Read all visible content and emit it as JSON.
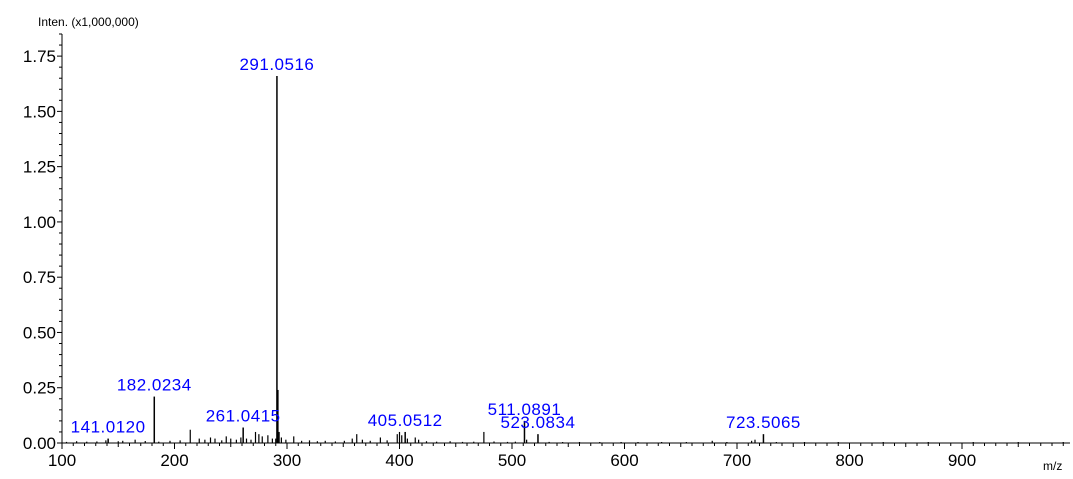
{
  "chart_data": {
    "type": "bar",
    "ylabel": "Inten. (x1,000,000)",
    "xlabel": "m/z",
    "xlim": [
      100,
      1000
    ],
    "ylim": [
      0,
      1.85
    ],
    "x_ticks": [
      100,
      200,
      300,
      400,
      500,
      600,
      700,
      800,
      900
    ],
    "x_tick_labels": [
      "100",
      "200",
      "300",
      "400",
      "500",
      "600",
      "700",
      "800",
      "900"
    ],
    "y_ticks": [
      0,
      0.25,
      0.5,
      0.75,
      1.0,
      1.25,
      1.5,
      1.75
    ],
    "y_tick_labels": [
      "0.00",
      "0.25",
      "0.50",
      "0.75",
      "1.00",
      "1.25",
      "1.50",
      "1.75"
    ],
    "label_color": "#0000ff",
    "bar_color": "#000000",
    "labeled_peaks": [
      {
        "mz": 141.012,
        "intensity": 0.02,
        "label": "141.0120"
      },
      {
        "mz": 182.0234,
        "intensity": 0.21,
        "label": "182.0234"
      },
      {
        "mz": 261.0415,
        "intensity": 0.07,
        "label": "261.0415"
      },
      {
        "mz": 291.0516,
        "intensity": 1.66,
        "label": "291.0516"
      },
      {
        "mz": 405.0512,
        "intensity": 0.05,
        "label": "405.0512"
      },
      {
        "mz": 511.0891,
        "intensity": 0.1,
        "label": "511.0891"
      },
      {
        "mz": 523.0834,
        "intensity": 0.04,
        "label": "523.0834"
      },
      {
        "mz": 723.5065,
        "intensity": 0.04,
        "label": "723.5065"
      }
    ],
    "minor_peaks": [
      {
        "mz": 104,
        "intensity": 0.005
      },
      {
        "mz": 113,
        "intensity": 0.008
      },
      {
        "mz": 122,
        "intensity": 0.006
      },
      {
        "mz": 131,
        "intensity": 0.007
      },
      {
        "mz": 139,
        "intensity": 0.012
      },
      {
        "mz": 150,
        "intensity": 0.008
      },
      {
        "mz": 154,
        "intensity": 0.01
      },
      {
        "mz": 165,
        "intensity": 0.015
      },
      {
        "mz": 174,
        "intensity": 0.009
      },
      {
        "mz": 186,
        "intensity": 0.006
      },
      {
        "mz": 196,
        "intensity": 0.01
      },
      {
        "mz": 205,
        "intensity": 0.012
      },
      {
        "mz": 214,
        "intensity": 0.06
      },
      {
        "mz": 222,
        "intensity": 0.02
      },
      {
        "mz": 227,
        "intensity": 0.015
      },
      {
        "mz": 232,
        "intensity": 0.025
      },
      {
        "mz": 236,
        "intensity": 0.02
      },
      {
        "mz": 242,
        "intensity": 0.012
      },
      {
        "mz": 246,
        "intensity": 0.03
      },
      {
        "mz": 250,
        "intensity": 0.02
      },
      {
        "mz": 255,
        "intensity": 0.015
      },
      {
        "mz": 259,
        "intensity": 0.025
      },
      {
        "mz": 264,
        "intensity": 0.02
      },
      {
        "mz": 268,
        "intensity": 0.015
      },
      {
        "mz": 272,
        "intensity": 0.05
      },
      {
        "mz": 275,
        "intensity": 0.04
      },
      {
        "mz": 278,
        "intensity": 0.03
      },
      {
        "mz": 283,
        "intensity": 0.035
      },
      {
        "mz": 287,
        "intensity": 0.02
      },
      {
        "mz": 290,
        "intensity": 0.02
      },
      {
        "mz": 292,
        "intensity": 0.24
      },
      {
        "mz": 293,
        "intensity": 0.05
      },
      {
        "mz": 295,
        "intensity": 0.025
      },
      {
        "mz": 299,
        "intensity": 0.015
      },
      {
        "mz": 306,
        "intensity": 0.03
      },
      {
        "mz": 313,
        "intensity": 0.01
      },
      {
        "mz": 320,
        "intensity": 0.012
      },
      {
        "mz": 327,
        "intensity": 0.008
      },
      {
        "mz": 334,
        "intensity": 0.01
      },
      {
        "mz": 343,
        "intensity": 0.007
      },
      {
        "mz": 351,
        "intensity": 0.01
      },
      {
        "mz": 358,
        "intensity": 0.02
      },
      {
        "mz": 362,
        "intensity": 0.04
      },
      {
        "mz": 367,
        "intensity": 0.015
      },
      {
        "mz": 374,
        "intensity": 0.01
      },
      {
        "mz": 383,
        "intensity": 0.025
      },
      {
        "mz": 389,
        "intensity": 0.012
      },
      {
        "mz": 398,
        "intensity": 0.04
      },
      {
        "mz": 400,
        "intensity": 0.05
      },
      {
        "mz": 402,
        "intensity": 0.035
      },
      {
        "mz": 407,
        "intensity": 0.02
      },
      {
        "mz": 414,
        "intensity": 0.025
      },
      {
        "mz": 417,
        "intensity": 0.015
      },
      {
        "mz": 424,
        "intensity": 0.008
      },
      {
        "mz": 433,
        "intensity": 0.006
      },
      {
        "mz": 445,
        "intensity": 0.008
      },
      {
        "mz": 456,
        "intensity": 0.005
      },
      {
        "mz": 466,
        "intensity": 0.006
      },
      {
        "mz": 475,
        "intensity": 0.05
      },
      {
        "mz": 484,
        "intensity": 0.007
      },
      {
        "mz": 496,
        "intensity": 0.005
      },
      {
        "mz": 503,
        "intensity": 0.006
      },
      {
        "mz": 513,
        "intensity": 0.015
      },
      {
        "mz": 533,
        "intensity": 0.005
      },
      {
        "mz": 545,
        "intensity": 0.004
      },
      {
        "mz": 560,
        "intensity": 0.004
      },
      {
        "mz": 578,
        "intensity": 0.004
      },
      {
        "mz": 597,
        "intensity": 0.003
      },
      {
        "mz": 612,
        "intensity": 0.004
      },
      {
        "mz": 633,
        "intensity": 0.003
      },
      {
        "mz": 655,
        "intensity": 0.004
      },
      {
        "mz": 678,
        "intensity": 0.01
      },
      {
        "mz": 691,
        "intensity": 0.004
      },
      {
        "mz": 713,
        "intensity": 0.01
      },
      {
        "mz": 716,
        "intensity": 0.015
      },
      {
        "mz": 735,
        "intensity": 0.004
      },
      {
        "mz": 760,
        "intensity": 0.003
      },
      {
        "mz": 790,
        "intensity": 0.003
      },
      {
        "mz": 830,
        "intensity": 0.003
      },
      {
        "mz": 870,
        "intensity": 0.003
      },
      {
        "mz": 910,
        "intensity": 0.003
      },
      {
        "mz": 950,
        "intensity": 0.003
      },
      {
        "mz": 990,
        "intensity": 0.003
      }
    ]
  }
}
